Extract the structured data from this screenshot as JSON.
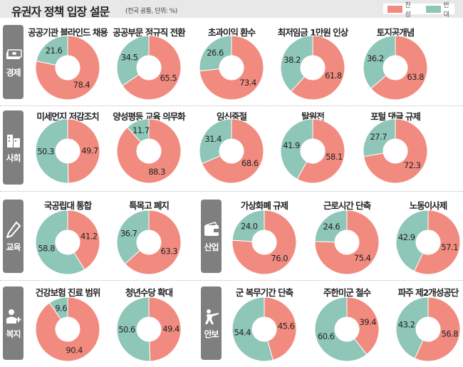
{
  "header": {
    "title": "유권자 정책 입장 설문",
    "subtitle": "(전국 공통, 단위: %)"
  },
  "legend": [
    {
      "label": "찬성",
      "color": "#f28b7f"
    },
    {
      "label": "반대",
      "color": "#8ec6b8"
    }
  ],
  "chart_data": {
    "type": "donut",
    "series_names": [
      "찬성",
      "반대"
    ],
    "colors": {
      "favor": "#f28b7f",
      "oppose": "#8ec6b8"
    },
    "unit": "%",
    "categories": [
      {
        "name": "경제",
        "icon": "money-icon",
        "items": [
          {
            "title": "공공기관 블라인드 채용",
            "favor": 78.4,
            "oppose": 21.6
          },
          {
            "title": "공공부문 정규직 전환",
            "favor": 65.5,
            "oppose": 34.5
          },
          {
            "title": "초과이익 환수",
            "favor": 73.4,
            "oppose": 26.6
          },
          {
            "title": "최저임금 1만원 인상",
            "favor": 61.8,
            "oppose": 38.2
          },
          {
            "title": "토지공개념",
            "favor": 63.8,
            "oppose": 36.2
          }
        ]
      },
      {
        "name": "사회",
        "icon": "building-icon",
        "items": [
          {
            "title": "미세먼지 저감조치",
            "favor": 49.7,
            "oppose": 50.3
          },
          {
            "title": "양성평등 교육 의무화",
            "favor": 88.3,
            "oppose": 11.7
          },
          {
            "title": "임신중절",
            "favor": 68.6,
            "oppose": 31.4
          },
          {
            "title": "탈원전",
            "favor": 58.1,
            "oppose": 41.9
          },
          {
            "title": "포털 댓글 규제",
            "favor": 72.3,
            "oppose": 27.7
          }
        ]
      },
      {
        "name": "교육",
        "icon": "pencil-icon",
        "items": [
          {
            "title": "국공립대 통합",
            "favor": 41.2,
            "oppose": 58.8
          },
          {
            "title": "특목고 폐지",
            "favor": 63.3,
            "oppose": 36.7
          }
        ]
      },
      {
        "name": "산업",
        "icon": "wallet-icon",
        "items": [
          {
            "title": "가상화폐 규제",
            "favor": 76.0,
            "oppose": 24.0
          },
          {
            "title": "근로시간 단축",
            "favor": 75.4,
            "oppose": 24.6
          },
          {
            "title": "노동이사제",
            "favor": 57.1,
            "oppose": 42.9
          }
        ]
      },
      {
        "name": "복지",
        "icon": "person-plus-icon",
        "items": [
          {
            "title": "건강보험 진료 범위",
            "favor": 90.4,
            "oppose": 9.6
          },
          {
            "title": "청년수당 확대",
            "favor": 49.4,
            "oppose": 50.6
          }
        ]
      },
      {
        "name": "안보",
        "icon": "soldier-icon",
        "items": [
          {
            "title": "군 복무기간 단축",
            "favor": 45.6,
            "oppose": 54.4
          },
          {
            "title": "주한미군 철수",
            "favor": 39.4,
            "oppose": 60.6
          },
          {
            "title": "파주 제2개성공단",
            "favor": 56.8,
            "oppose": 43.2
          }
        ]
      }
    ]
  }
}
